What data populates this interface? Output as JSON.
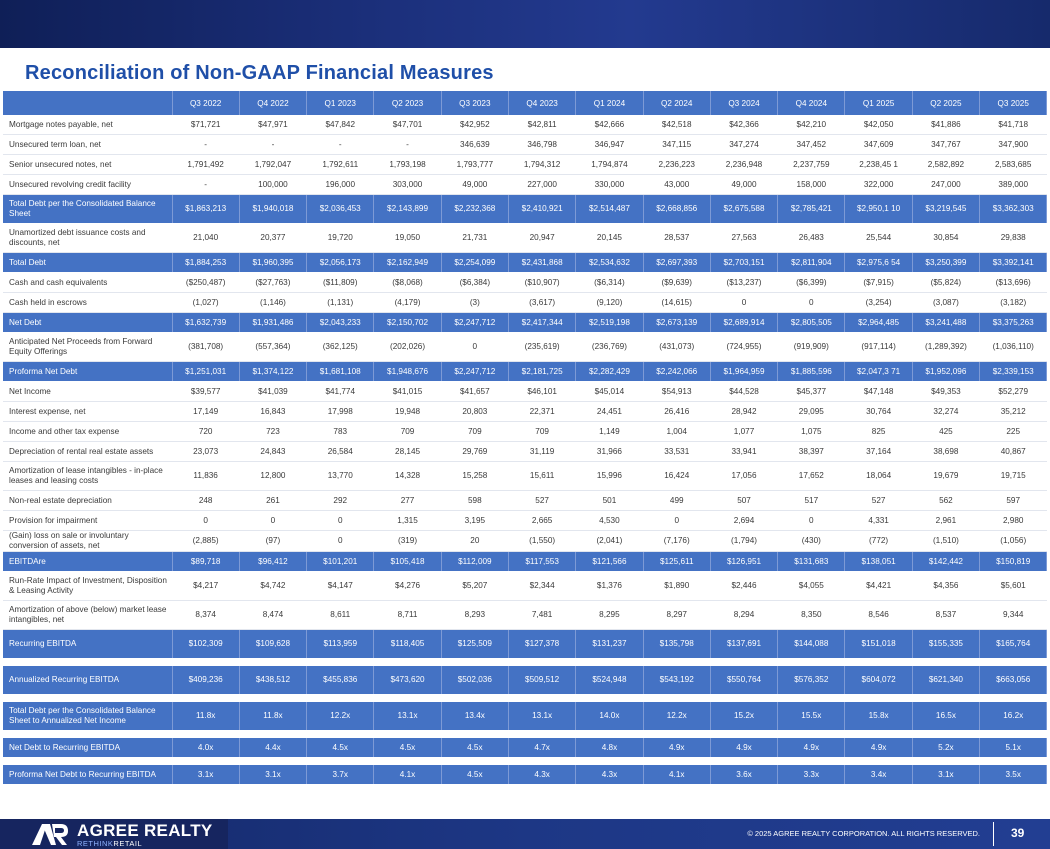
{
  "title": "Reconciliation of Non-GAAP Financial Measures",
  "table": {
    "columns": [
      "",
      "Q3 2022",
      "Q4 2022",
      "Q1 2023",
      "Q2 2023",
      "Q3 2023",
      "Q4 2023",
      "Q1 2024",
      "Q2 2024",
      "Q3 2024",
      "Q4 2024",
      "Q1 2025",
      "Q2 2025",
      "Q3 2025"
    ],
    "rows": [
      {
        "label": "Mortgage notes payable, net",
        "values": [
          "$71,721",
          "$47,971",
          "$47,842",
          "$47,701",
          "$42,952",
          "$42,811",
          "$42,666",
          "$42,518",
          "$42,366",
          "$42,210",
          "$42,050",
          "$41,886",
          "$41,718"
        ]
      },
      {
        "label": "Unsecured term loan, net",
        "values": [
          "-",
          "-",
          "-",
          "-",
          "346,639",
          "346,798",
          "346,947",
          "347,115",
          "347,274",
          "347,452",
          "347,609",
          "347,767",
          "347,900"
        ]
      },
      {
        "label": "Senior unsecured notes, net",
        "values": [
          "1,791,492",
          "1,792,047",
          "1,792,611",
          "1,793,198",
          "1,793,777",
          "1,794,312",
          "1,794,874",
          "2,236,223",
          "2,236,948",
          "2,237,759",
          "2,238,45 1",
          "2,582,892",
          "2,583,685"
        ]
      },
      {
        "label": "Unsecured revolving credit facility",
        "values": [
          "-",
          "100,000",
          "196,000",
          "303,000",
          "49,000",
          "227,000",
          "330,000",
          "43,000",
          "49,000",
          "158,000",
          "322,000",
          "247,000",
          "389,000"
        ]
      },
      {
        "label": "Total Debt per the Consolidated Balance Sheet",
        "highlight": true,
        "tall": true,
        "values": [
          "$1,863,213",
          "$1,940,018",
          "$2,036,453",
          "$2,143,899",
          "$2,232,368",
          "$2,410,921",
          "$2,514,487",
          "$2,668,856",
          "$2,675,588",
          "$2,785,421",
          "$2,950,1 10",
          "$3,219,545",
          "$3,362,303"
        ]
      },
      {
        "label": "Unamortized debt issuance costs and discounts, net",
        "tall": true,
        "values": [
          "21,040",
          "20,377",
          "19,720",
          "19,050",
          "21,731",
          "20,947",
          "20,145",
          "28,537",
          "27,563",
          "26,483",
          "25,544",
          "30,854",
          "29,838"
        ]
      },
      {
        "label": "Total Debt",
        "highlight": true,
        "values": [
          "$1,884,253",
          "$1,960,395",
          "$2,056,173",
          "$2,162,949",
          "$2,254,099",
          "$2,431,868",
          "$2,534,632",
          "$2,697,393",
          "$2,703,151",
          "$2,811,904",
          "$2,975,6 54",
          "$3,250,399",
          "$3,392,141"
        ]
      },
      {
        "label": "Cash and cash equivalents",
        "values": [
          "($250,487)",
          "($27,763)",
          "($11,809)",
          "($8,068)",
          "($6,384)",
          "($10,907)",
          "($6,314)",
          "($9,639)",
          "($13,237)",
          "($6,399)",
          "($7,915)",
          "($5,824)",
          "($13,696)"
        ]
      },
      {
        "label": "Cash held in escrows",
        "values": [
          "(1,027)",
          "(1,146)",
          "(1,131)",
          "(4,179)",
          "(3)",
          "(3,617)",
          "(9,120)",
          "(14,615)",
          "0",
          "0",
          "(3,254)",
          "(3,087)",
          "(3,182)"
        ]
      },
      {
        "label": "Net Debt",
        "highlight": true,
        "values": [
          "$1,632,739",
          "$1,931,486",
          "$2,043,233",
          "$2,150,702",
          "$2,247,712",
          "$2,417,344",
          "$2,519,198",
          "$2,673,139",
          "$2,689,914",
          "$2,805,505",
          "$2,964,485",
          "$3,241,488",
          "$3,375,263"
        ]
      },
      {
        "label": "Anticipated Net Proceeds from Forward Equity Offerings",
        "tall": true,
        "values": [
          "(381,708)",
          "(557,364)",
          "(362,125)",
          "(202,026)",
          "0",
          "(235,619)",
          "(236,769)",
          "(431,073)",
          "(724,955)",
          "(919,909)",
          "(917,114)",
          "(1,289,392)",
          "(1,036,110)"
        ]
      },
      {
        "label": "Proforma Net Debt",
        "highlight": true,
        "values": [
          "$1,251,031",
          "$1,374,122",
          "$1,681,108",
          "$1,948,676",
          "$2,247,712",
          "$2,181,725",
          "$2,282,429",
          "$2,242,066",
          "$1,964,959",
          "$1,885,596",
          "$2,047,3 71",
          "$1,952,096",
          "$2,339,153"
        ]
      },
      {
        "label": "Net Income",
        "values": [
          "$39,577",
          "$41,039",
          "$41,774",
          "$41,015",
          "$41,657",
          "$46,101",
          "$45,014",
          "$54,913",
          "$44,528",
          "$45,377",
          "$47,148",
          "$49,353",
          "$52,279"
        ]
      },
      {
        "label": "Interest expense, net",
        "values": [
          "17,149",
          "16,843",
          "17,998",
          "19,948",
          "20,803",
          "22,371",
          "24,451",
          "26,416",
          "28,942",
          "29,095",
          "30,764",
          "32,274",
          "35,212"
        ]
      },
      {
        "label": "Income and other tax expense",
        "values": [
          "720",
          "723",
          "783",
          "709",
          "709",
          "709",
          "1,149",
          "1,004",
          "1,077",
          "1,075",
          "825",
          "425",
          "225"
        ]
      },
      {
        "label": "Depreciation of rental real estate assets",
        "values": [
          "23,073",
          "24,843",
          "26,584",
          "28,145",
          "29,769",
          "31,119",
          "31,966",
          "33,531",
          "33,941",
          "38,397",
          "37,164",
          "38,698",
          "40,867"
        ]
      },
      {
        "label": "Amortization of lease intangibles - in-place leases and leasing costs",
        "tall": true,
        "values": [
          "11,836",
          "12,800",
          "13,770",
          "14,328",
          "15,258",
          "15,611",
          "15,996",
          "16,424",
          "17,056",
          "17,652",
          "18,064",
          "19,679",
          "19,715"
        ]
      },
      {
        "label": "Non-real estate depreciation",
        "values": [
          "248",
          "261",
          "292",
          "277",
          "598",
          "527",
          "501",
          "499",
          "507",
          "517",
          "527",
          "562",
          "597"
        ]
      },
      {
        "label": "Provision for impairment",
        "values": [
          "0",
          "0",
          "0",
          "1,315",
          "3,195",
          "2,665",
          "4,530",
          "0",
          "2,694",
          "0",
          "4,331",
          "2,961",
          "2,980"
        ]
      },
      {
        "label": "(Gain) loss on sale or involuntary conversion of assets, net",
        "values": [
          "(2,885)",
          "(97)",
          "0",
          "(319)",
          "20",
          "(1,550)",
          "(2,041)",
          "(7,176)",
          "(1,794)",
          "(430)",
          "(772)",
          "(1,510)",
          "(1,056)"
        ]
      },
      {
        "label": "EBITDAre",
        "highlight": true,
        "values": [
          "$89,718",
          "$96,412",
          "$101,201",
          "$105,418",
          "$112,009",
          "$117,553",
          "$121,566",
          "$125,611",
          "$126,951",
          "$131,683",
          "$138,051",
          "$142,442",
          "$150,819"
        ]
      },
      {
        "label": "Run-Rate Impact of Investment, Disposition & Leasing Activity",
        "tall": true,
        "values": [
          "$4,217",
          "$4,742",
          "$4,147",
          "$4,276",
          "$5,207",
          "$2,344",
          "$1,376",
          "$1,890",
          "$2,446",
          "$4,055",
          "$4,421",
          "$4,356",
          "$5,601"
        ]
      },
      {
        "label": "Amortization of above (below) market lease intangibles, net",
        "tall": true,
        "values": [
          "8,374",
          "8,474",
          "8,611",
          "8,711",
          "8,293",
          "7,481",
          "8,295",
          "8,297",
          "8,294",
          "8,350",
          "8,546",
          "8,537",
          "9,344"
        ]
      },
      {
        "label": "Recurring EBITDA",
        "highlight": true,
        "tall": true,
        "values": [
          "$102,309",
          "$109,628",
          "$113,959",
          "$118,405",
          "$125,509",
          "$127,378",
          "$131,237",
          "$135,798",
          "$137,691",
          "$144,088",
          "$151,018",
          "$155,335",
          "$165,764"
        ]
      },
      {
        "spacer": true
      },
      {
        "label": "Annualized Recurring EBITDA",
        "highlight": true,
        "tall": true,
        "values": [
          "$409,236",
          "$438,512",
          "$455,836",
          "$473,620",
          "$502,036",
          "$509,512",
          "$524,948",
          "$543,192",
          "$550,764",
          "$576,352",
          "$604,072",
          "$621,340",
          "$663,056"
        ]
      },
      {
        "spacer": true
      },
      {
        "label": "Total Debt per the Consolidated Balance Sheet to Annualized Net Income",
        "highlight": true,
        "tall": true,
        "values": [
          "11.8x",
          "11.8x",
          "12.2x",
          "13.1x",
          "13.4x",
          "13.1x",
          "14.0x",
          "12.2x",
          "15.2x",
          "15.5x",
          "15.8x",
          "16.5x",
          "16.2x"
        ]
      },
      {
        "spacer": true
      },
      {
        "label": "Net Debt to Recurring EBITDA",
        "highlight": true,
        "values": [
          "4.0x",
          "4.4x",
          "4.5x",
          "4.5x",
          "4.5x",
          "4.7x",
          "4.8x",
          "4.9x",
          "4.9x",
          "4.9x",
          "4.9x",
          "5.2x",
          "5.1x"
        ]
      },
      {
        "spacer": true
      },
      {
        "label": "Proforma Net Debt to Recurring EBITDA",
        "highlight": true,
        "values": [
          "3.1x",
          "3.1x",
          "3.7x",
          "4.1x",
          "4.5x",
          "4.3x",
          "4.3x",
          "4.1x",
          "3.6x",
          "3.3x",
          "3.4x",
          "3.1x",
          "3.5x"
        ]
      }
    ]
  },
  "footer": {
    "logo_name": "AGREE REALTY",
    "logo_tag_a": "RETHINK",
    "logo_tag_b": "RETAIL",
    "copyright": "© 2025 AGREE REALTY CORPORATION. ALL RIGHTS RESERVED.",
    "page_number": "39"
  }
}
